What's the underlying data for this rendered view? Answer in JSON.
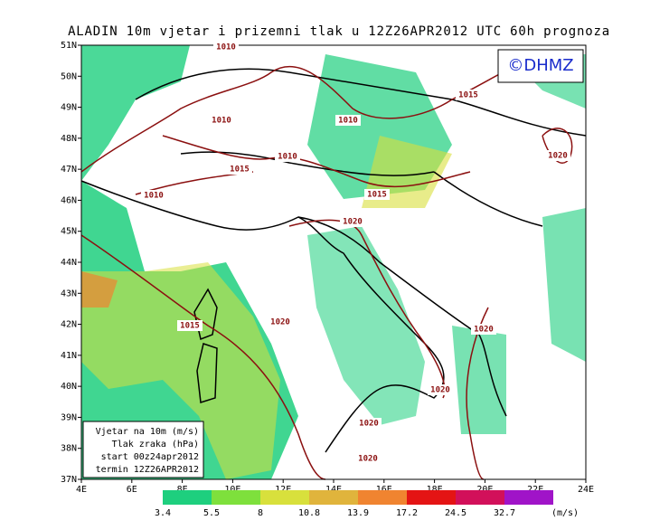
{
  "title": "ALADIN 10m vjetar i prizemni tlak u 12Z26APR2012 UTC 60h prognoza",
  "logo": "©DHMZ",
  "lat_labels": [
    "51N",
    "50N",
    "49N",
    "48N",
    "47N",
    "46N",
    "45N",
    "44N",
    "43N",
    "42N",
    "41N",
    "40N",
    "39N",
    "38N",
    "37N"
  ],
  "lon_labels": [
    "4E",
    "6E",
    "8E",
    "10E",
    "12E",
    "14E",
    "16E",
    "18E",
    "20E",
    "22E",
    "24E"
  ],
  "isobar_labels": [
    "1010",
    "1010",
    "1015",
    "1010",
    "1020",
    "1010",
    "1015",
    "1010",
    "1015",
    "1020",
    "1015",
    "1020",
    "1020",
    "1020",
    "1020",
    "1020"
  ],
  "info_box": [
    "Vjetar na 10m (m/s)",
    "Tlak zraka (hPa)",
    "start 00z24apr2012",
    "termin 12Z26APR2012"
  ],
  "colorbar": {
    "labels": [
      "3.4",
      "5.5",
      "8",
      "10.8",
      "13.9",
      "17.2",
      "24.5",
      "32.7"
    ],
    "colors": [
      "#1ecf7e",
      "#7ee03c",
      "#d8e03c",
      "#e0b43c",
      "#f08430",
      "#e41414",
      "#d2105a",
      "#a014c8"
    ],
    "unit": "(m/s)"
  }
}
